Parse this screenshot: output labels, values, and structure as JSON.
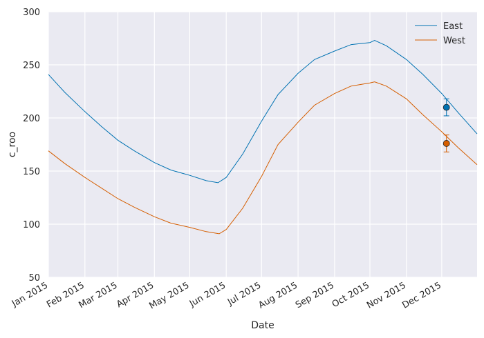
{
  "chart_data": {
    "type": "line",
    "title": "",
    "xlabel": "Date",
    "ylabel": "c_roo",
    "ylim": [
      50,
      300
    ],
    "xlim": [
      "2015-01-01",
      "2015-12-31"
    ],
    "yticks": [
      50,
      100,
      150,
      200,
      250,
      300
    ],
    "xtick_labels": [
      "Jan 2015",
      "Feb 2015",
      "Mar 2015",
      "Apr 2015",
      "May 2015",
      "Jun 2015",
      "Jul 2015",
      "Aug 2015",
      "Sep 2015",
      "Oct 2015",
      "Nov 2015",
      "Dec 2015"
    ],
    "xtick_dates": [
      "2015-01-01",
      "2015-02-01",
      "2015-03-01",
      "2015-04-01",
      "2015-05-01",
      "2015-06-01",
      "2015-07-01",
      "2015-08-01",
      "2015-09-01",
      "2015-10-01",
      "2015-11-01",
      "2015-12-01"
    ],
    "grid": true,
    "legend_position": "top-right",
    "series": [
      {
        "name": "East",
        "color": "#0072b2",
        "points": [
          [
            "2015-01-01",
            241
          ],
          [
            "2015-01-15",
            224
          ],
          [
            "2015-02-01",
            206
          ],
          [
            "2015-02-15",
            192
          ],
          [
            "2015-03-01",
            179
          ],
          [
            "2015-03-15",
            169
          ],
          [
            "2015-04-01",
            158
          ],
          [
            "2015-04-15",
            151
          ],
          [
            "2015-05-01",
            146
          ],
          [
            "2015-05-15",
            141
          ],
          [
            "2015-05-25",
            139
          ],
          [
            "2015-06-01",
            144
          ],
          [
            "2015-06-15",
            166
          ],
          [
            "2015-07-01",
            197
          ],
          [
            "2015-07-15",
            222
          ],
          [
            "2015-08-01",
            242
          ],
          [
            "2015-08-15",
            255
          ],
          [
            "2015-09-01",
            263
          ],
          [
            "2015-09-15",
            269
          ],
          [
            "2015-10-01",
            271
          ],
          [
            "2015-10-05",
            273
          ],
          [
            "2015-10-15",
            268
          ],
          [
            "2015-11-01",
            255
          ],
          [
            "2015-11-15",
            241
          ],
          [
            "2015-12-01",
            223
          ],
          [
            "2015-12-15",
            205
          ],
          [
            "2015-12-31",
            185
          ]
        ],
        "marker": {
          "date": "2015-12-05",
          "value": 210,
          "error": 8
        }
      },
      {
        "name": "West",
        "color": "#d55e00",
        "points": [
          [
            "2015-01-01",
            169
          ],
          [
            "2015-01-15",
            157
          ],
          [
            "2015-02-01",
            144
          ],
          [
            "2015-02-15",
            134
          ],
          [
            "2015-03-01",
            124
          ],
          [
            "2015-03-15",
            116
          ],
          [
            "2015-04-01",
            107
          ],
          [
            "2015-04-15",
            101
          ],
          [
            "2015-05-01",
            97
          ],
          [
            "2015-05-15",
            93
          ],
          [
            "2015-05-26",
            91
          ],
          [
            "2015-06-01",
            95
          ],
          [
            "2015-06-15",
            115
          ],
          [
            "2015-07-01",
            145
          ],
          [
            "2015-07-15",
            175
          ],
          [
            "2015-08-01",
            196
          ],
          [
            "2015-08-15",
            212
          ],
          [
            "2015-09-01",
            223
          ],
          [
            "2015-09-15",
            230
          ],
          [
            "2015-10-01",
            233
          ],
          [
            "2015-10-05",
            234
          ],
          [
            "2015-10-15",
            230
          ],
          [
            "2015-11-01",
            218
          ],
          [
            "2015-11-15",
            203
          ],
          [
            "2015-12-01",
            187
          ],
          [
            "2015-12-15",
            172
          ],
          [
            "2015-12-31",
            156
          ]
        ],
        "marker": {
          "date": "2015-12-05",
          "value": 176,
          "error": 8
        }
      }
    ]
  }
}
